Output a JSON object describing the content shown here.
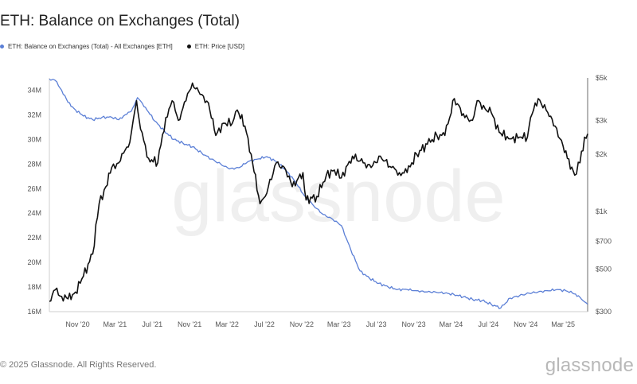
{
  "header": {
    "title": "ETH: Balance on Exchanges (Total)"
  },
  "footer": {
    "copyright": "© 2025 Glassnode. All Rights Reserved.",
    "brand": "glassnode"
  },
  "watermark": "glassnode",
  "chart_data": {
    "type": "line",
    "title": "ETH: Balance on Exchanges (Total)",
    "grid": false,
    "legend_position": "top-left",
    "x_tick_labels": [
      "Nov '20",
      "Mar '21",
      "Jul '21",
      "Nov '21",
      "Mar '22",
      "Jul '22",
      "Nov '22",
      "Mar '23",
      "Jul '23",
      "Nov '23",
      "Mar '24",
      "Jul '24",
      "Nov '24",
      "Mar '25"
    ],
    "x_range": [
      "2020-08-01",
      "2025-05-20"
    ],
    "y_left": {
      "scale": "linear",
      "range": [
        16,
        35
      ],
      "unit": "M",
      "ticks": [
        16,
        18,
        20,
        22,
        24,
        26,
        28,
        30,
        32,
        34
      ],
      "tick_labels": [
        "16M",
        "18M",
        "20M",
        "22M",
        "24M",
        "26M",
        "28M",
        "30M",
        "32M",
        "34M"
      ]
    },
    "y_right": {
      "scale": "log",
      "range": [
        300,
        5000
      ],
      "ticks": [
        300,
        500,
        700,
        1000,
        2000,
        3000,
        5000
      ],
      "tick_labels": [
        "$300",
        "$500",
        "$700",
        "$1k",
        "$2k",
        "$3k",
        "$5k"
      ]
    },
    "series": [
      {
        "name": "ETH: Balance on Exchanges (Total) - All Exchanges [ETH]",
        "color": "#5b7fd6",
        "axis": "left",
        "x": [
          "2020-08-01",
          "2020-08-20",
          "2020-09-10",
          "2020-10-01",
          "2020-10-25",
          "2020-11-20",
          "2020-12-20",
          "2021-01-20",
          "2021-02-20",
          "2021-03-15",
          "2021-04-05",
          "2021-04-25",
          "2021-05-15",
          "2021-06-10",
          "2021-07-10",
          "2021-08-10",
          "2021-09-10",
          "2021-10-10",
          "2021-11-10",
          "2021-12-10",
          "2022-01-10",
          "2022-02-10",
          "2022-03-10",
          "2022-04-10",
          "2022-05-10",
          "2022-06-10",
          "2022-07-10",
          "2022-08-10",
          "2022-09-10",
          "2022-10-10",
          "2022-11-10",
          "2022-12-10",
          "2023-01-10",
          "2023-02-10",
          "2023-03-10",
          "2023-04-10",
          "2023-05-10",
          "2023-06-10",
          "2023-07-10",
          "2023-08-10",
          "2023-09-10",
          "2023-10-10",
          "2023-11-10",
          "2023-12-10",
          "2024-01-10",
          "2024-02-10",
          "2024-03-10",
          "2024-04-10",
          "2024-05-10",
          "2024-06-10",
          "2024-07-10",
          "2024-08-10",
          "2024-09-10",
          "2024-10-10",
          "2024-11-10",
          "2024-12-10",
          "2025-01-10",
          "2025-02-10",
          "2025-03-10",
          "2025-04-01",
          "2025-04-20",
          "2025-05-05",
          "2025-05-20"
        ],
        "values": [
          34.9,
          34.8,
          34.0,
          33.0,
          32.4,
          31.9,
          31.6,
          31.8,
          31.8,
          31.6,
          32.0,
          32.3,
          33.4,
          32.6,
          31.5,
          30.7,
          30.0,
          29.7,
          29.4,
          28.9,
          28.4,
          28.0,
          27.6,
          27.7,
          28.2,
          28.4,
          28.6,
          28.2,
          27.5,
          26.6,
          25.4,
          24.6,
          23.9,
          23.5,
          23.0,
          21.0,
          19.3,
          18.7,
          18.3,
          18.0,
          17.8,
          17.8,
          17.7,
          17.6,
          17.6,
          17.5,
          17.4,
          17.2,
          17.0,
          16.9,
          16.6,
          16.3,
          17.1,
          17.3,
          17.5,
          17.6,
          17.7,
          17.8,
          17.7,
          17.5,
          17.3,
          16.9,
          16.6
        ]
      },
      {
        "name": "ETH: Price [USD]",
        "color": "#111111",
        "axis": "right",
        "x": [
          "2020-08-01",
          "2020-08-20",
          "2020-09-10",
          "2020-10-01",
          "2020-10-25",
          "2020-11-20",
          "2020-12-20",
          "2021-01-10",
          "2021-02-01",
          "2021-02-20",
          "2021-03-15",
          "2021-04-05",
          "2021-04-20",
          "2021-05-12",
          "2021-05-25",
          "2021-06-20",
          "2021-07-20",
          "2021-08-15",
          "2021-09-05",
          "2021-09-25",
          "2021-10-20",
          "2021-11-10",
          "2021-12-05",
          "2022-01-01",
          "2022-01-25",
          "2022-02-20",
          "2022-03-20",
          "2022-04-05",
          "2022-04-30",
          "2022-05-20",
          "2022-06-18",
          "2022-07-05",
          "2022-08-10",
          "2022-09-10",
          "2022-10-01",
          "2022-11-05",
          "2022-11-15",
          "2022-12-20",
          "2023-01-20",
          "2023-02-15",
          "2023-03-10",
          "2023-04-15",
          "2023-05-20",
          "2023-06-15",
          "2023-07-15",
          "2023-08-20",
          "2023-09-15",
          "2023-10-10",
          "2023-11-10",
          "2023-12-15",
          "2024-01-15",
          "2024-02-10",
          "2024-03-12",
          "2024-04-15",
          "2024-05-10",
          "2024-05-25",
          "2024-06-20",
          "2024-07-10",
          "2024-08-05",
          "2024-09-10",
          "2024-10-10",
          "2024-11-05",
          "2024-11-15",
          "2024-12-10",
          "2025-01-10",
          "2025-02-03",
          "2025-03-01",
          "2025-03-15",
          "2025-04-08",
          "2025-04-25",
          "2025-05-10",
          "2025-05-20"
        ],
        "values": [
          340,
          390,
          360,
          350,
          380,
          460,
          600,
          1100,
          1350,
          1700,
          1800,
          2100,
          2300,
          3800,
          2700,
          1900,
          1800,
          3100,
          3800,
          3000,
          3800,
          4700,
          4100,
          3700,
          2500,
          2900,
          2900,
          3400,
          2800,
          2000,
          1100,
          1200,
          1800,
          1650,
          1350,
          1600,
          1150,
          1200,
          1550,
          1650,
          1500,
          1950,
          1800,
          1700,
          1950,
          1700,
          1600,
          1600,
          2000,
          2250,
          2500,
          2500,
          3900,
          3100,
          3000,
          3800,
          3450,
          3300,
          2600,
          2400,
          2450,
          2450,
          3100,
          3900,
          3300,
          2800,
          2200,
          1900,
          1550,
          1800,
          2450,
          2550
        ]
      }
    ]
  }
}
